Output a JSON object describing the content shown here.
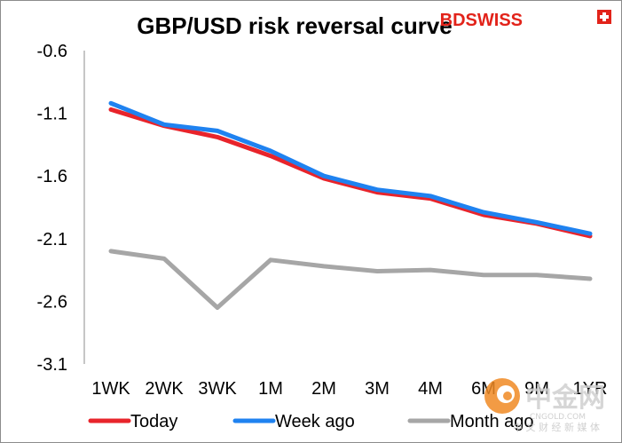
{
  "brand": {
    "name": "BDSWISS",
    "color": "#e2231a"
  },
  "watermark": {
    "name": "中金网",
    "url": "CNGOLD.COM",
    "tagline": "中 文 财 经 新 媒 体"
  },
  "chart_data": {
    "type": "line",
    "title": "GBP/USD risk reversal curve",
    "categories": [
      "1WK",
      "2WK",
      "3WK",
      "1M",
      "2M",
      "3M",
      "4M",
      "6M",
      "9M",
      "1YR"
    ],
    "yticks": [
      "-0.6",
      "-1.1",
      "-1.6",
      "-2.1",
      "-2.6",
      "-3.1"
    ],
    "ylim": [
      -3.1,
      -0.6
    ],
    "grid": false,
    "legend_position": "bottom",
    "series": [
      {
        "name": "Today",
        "color": "#e8242b",
        "values": [
          -1.07,
          -1.2,
          -1.29,
          -1.44,
          -1.62,
          -1.73,
          -1.78,
          -1.91,
          -1.98,
          -2.08
        ]
      },
      {
        "name": "Week ago",
        "color": "#1f82f0",
        "values": [
          -1.02,
          -1.19,
          -1.24,
          -1.4,
          -1.6,
          -1.71,
          -1.76,
          -1.89,
          -1.97,
          -2.06
        ]
      },
      {
        "name": "Month ago",
        "color": "#a6a6a6",
        "values": [
          -2.2,
          -2.26,
          -2.65,
          -2.27,
          -2.32,
          -2.36,
          -2.35,
          -2.39,
          -2.39,
          -2.42
        ]
      }
    ]
  }
}
